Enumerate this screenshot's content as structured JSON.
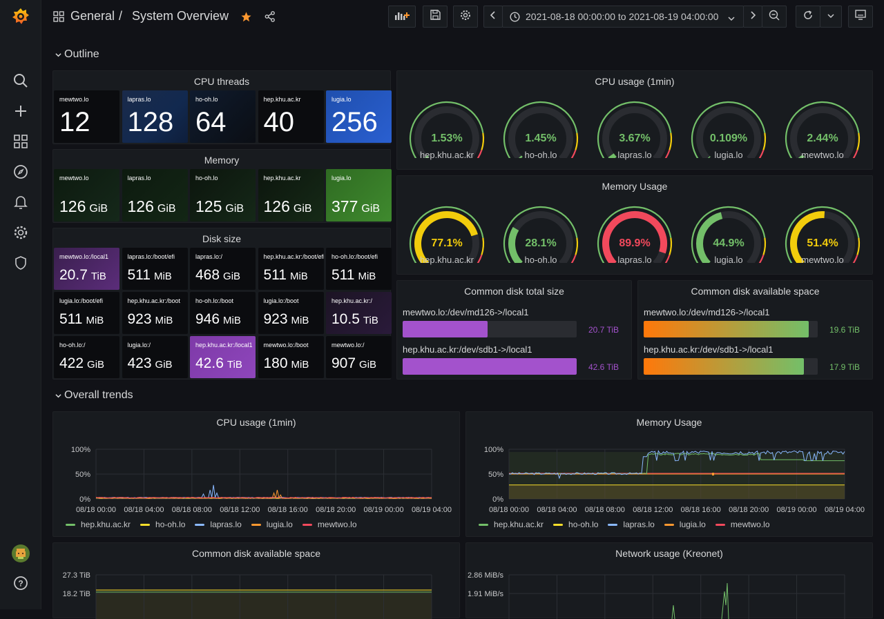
{
  "topbar": {
    "breadcrumb_folder": "General",
    "breadcrumb_sep": "/",
    "dashboard_title": "System Overview",
    "time_range": "2021-08-18 00:00:00 to 2021-08-19 04:00:00"
  },
  "rows": {
    "outline": "Outline",
    "trends": "Overall trends"
  },
  "cpu_threads": {
    "title": "CPU threads",
    "stats": [
      {
        "label": "mewtwo.lo",
        "value": "12"
      },
      {
        "label": "lapras.lo",
        "value": "128"
      },
      {
        "label": "ho-oh.lo",
        "value": "64"
      },
      {
        "label": "hep.khu.ac.kr",
        "value": "40"
      },
      {
        "label": "lugia.lo",
        "value": "256"
      }
    ]
  },
  "memory": {
    "title": "Memory",
    "stats": [
      {
        "label": "mewtwo.lo",
        "value": "126",
        "unit": "GiB"
      },
      {
        "label": "lapras.lo",
        "value": "126",
        "unit": "GiB"
      },
      {
        "label": "ho-oh.lo",
        "value": "125",
        "unit": "GiB"
      },
      {
        "label": "hep.khu.ac.kr",
        "value": "126",
        "unit": "GiB"
      },
      {
        "label": "lugia.lo",
        "value": "377",
        "unit": "GiB"
      }
    ]
  },
  "disk_size": {
    "title": "Disk size",
    "stats": [
      {
        "label": "mewtwo.lo:/local1",
        "value": "20.7",
        "unit": "TiB"
      },
      {
        "label": "lapras.lo:/boot/efi",
        "value": "511",
        "unit": "MiB"
      },
      {
        "label": "lapras.lo:/",
        "value": "468",
        "unit": "GiB"
      },
      {
        "label": "hep.khu.ac.kr:/boot/efi",
        "value": "511",
        "unit": "MiB"
      },
      {
        "label": "ho-oh.lo:/boot/efi",
        "value": "511",
        "unit": "MiB"
      },
      {
        "label": "lugia.lo:/boot/efi",
        "value": "511",
        "unit": "MiB"
      },
      {
        "label": "hep.khu.ac.kr:/boot",
        "value": "923",
        "unit": "MiB"
      },
      {
        "label": "ho-oh.lo:/boot",
        "value": "946",
        "unit": "MiB"
      },
      {
        "label": "lugia.lo:/boot",
        "value": "923",
        "unit": "MiB"
      },
      {
        "label": "hep.khu.ac.kr:/",
        "value": "10.5",
        "unit": "TiB"
      },
      {
        "label": "ho-oh.lo:/",
        "value": "422",
        "unit": "GiB"
      },
      {
        "label": "lugia.lo:/",
        "value": "423",
        "unit": "GiB"
      },
      {
        "label": "hep.khu.ac.kr:/local1",
        "value": "42.6",
        "unit": "TiB"
      },
      {
        "label": "mewtwo.lo:/boot",
        "value": "180",
        "unit": "MiB"
      },
      {
        "label": "mewtwo.lo:/",
        "value": "907",
        "unit": "GiB"
      }
    ]
  },
  "cpu_gauges": {
    "title": "CPU usage (1min)",
    "gauges": [
      {
        "host": "hep.khu.ac.kr",
        "value": "1.53%",
        "pct": 1.53
      },
      {
        "host": "ho-oh.lo",
        "value": "1.45%",
        "pct": 1.45
      },
      {
        "host": "lapras.lo",
        "value": "3.67%",
        "pct": 3.67
      },
      {
        "host": "lugia.lo",
        "value": "0.109%",
        "pct": 0.109
      },
      {
        "host": "mewtwo.lo",
        "value": "2.44%",
        "pct": 2.44
      }
    ]
  },
  "mem_gauges": {
    "title": "Memory Usage",
    "gauges": [
      {
        "host": "hep.khu.ac.kr",
        "value": "77.1%",
        "pct": 77.1
      },
      {
        "host": "ho-oh.lo",
        "value": "28.1%",
        "pct": 28.1
      },
      {
        "host": "lapras.lo",
        "value": "89.9%",
        "pct": 89.9
      },
      {
        "host": "lugia.lo",
        "value": "44.9%",
        "pct": 44.9
      },
      {
        "host": "mewtwo.lo",
        "value": "51.4%",
        "pct": 51.4
      }
    ]
  },
  "disk_total": {
    "title": "Common disk total size",
    "bars": [
      {
        "name": "mewtwo.lo:/dev/md126->/local1",
        "value": "20.7 TiB",
        "fraction": 0.49
      },
      {
        "name": "hep.khu.ac.kr:/dev/sdb1->/local1",
        "value": "42.6 TiB",
        "fraction": 1.0
      }
    ]
  },
  "disk_avail": {
    "title": "Common disk available space",
    "bars": [
      {
        "name": "mewtwo.lo:/dev/md126->/local1",
        "value": "19.6 TiB",
        "fraction": 0.95
      },
      {
        "name": "hep.khu.ac.kr:/dev/sdb1->/local1",
        "value": "17.9 TiB",
        "fraction": 0.92
      }
    ]
  },
  "ts_cpu": {
    "title": "CPU usage (1min)",
    "yticks": [
      "100%",
      "50%",
      "0%"
    ],
    "xticks": [
      "08/18 00:00",
      "08/18 04:00",
      "08/18 08:00",
      "08/18 12:00",
      "08/18 16:00",
      "08/18 20:00",
      "08/19 00:00",
      "08/19 04:00"
    ]
  },
  "ts_mem": {
    "title": "Memory Usage",
    "yticks": [
      "100%",
      "50%",
      "0%"
    ],
    "xticks": [
      "08/18 00:00",
      "08/18 04:00",
      "08/18 08:00",
      "08/18 12:00",
      "08/18 16:00",
      "08/18 20:00",
      "08/19 00:00",
      "08/19 04:00"
    ]
  },
  "legend": [
    {
      "name": "hep.khu.ac.kr",
      "color": "#73bf69"
    },
    {
      "name": "ho-oh.lo",
      "color": "#fade2a"
    },
    {
      "name": "lapras.lo",
      "color": "#8ab8ff"
    },
    {
      "name": "lugia.lo",
      "color": "#ff9830"
    },
    {
      "name": "mewtwo.lo",
      "color": "#f2495c"
    }
  ],
  "ts_disk": {
    "title": "Common disk available space",
    "yticks": [
      "27.3 TiB",
      "18.2 TiB"
    ]
  },
  "ts_net": {
    "title": "Network usage (Kreonet)",
    "yticks": [
      "2.86 MiB/s",
      "1.91 MiB/s"
    ]
  },
  "colors": {
    "green": "#73bf69",
    "yellow": "#f2cc0c",
    "red": "#f2495c",
    "purple": "#a352cc",
    "orange": "#ff780a",
    "bg": "#111217",
    "panel": "#181b1f"
  }
}
